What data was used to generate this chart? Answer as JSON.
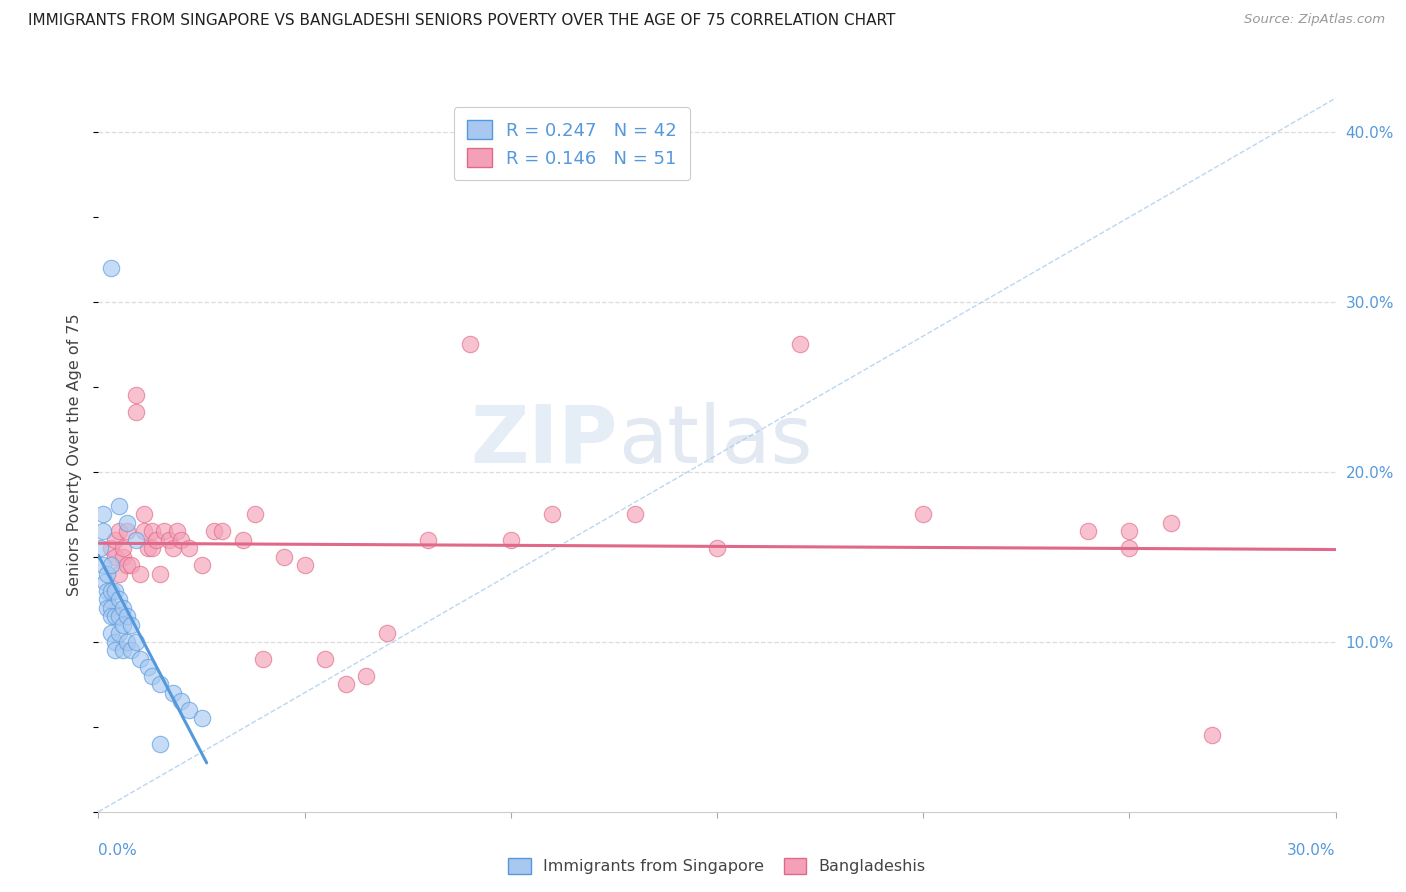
{
  "title": "IMMIGRANTS FROM SINGAPORE VS BANGLADESHI SENIORS POVERTY OVER THE AGE OF 75 CORRELATION CHART",
  "source": "Source: ZipAtlas.com",
  "ylabel": "Seniors Poverty Over the Age of 75",
  "xmin": 0.0,
  "xmax": 0.3,
  "ymin": 0.0,
  "ymax": 0.42,
  "color_blue": "#a8c8f0",
  "color_pink": "#f4a0b8",
  "line_blue": "#5599dd",
  "line_pink": "#e06888",
  "watermark_zip": "ZIP",
  "watermark_atlas": "atlas",
  "legend_r1": "0.247",
  "legend_n1": "42",
  "legend_r2": "0.146",
  "legend_n2": "51",
  "sg_x": [
    0.0005,
    0.001,
    0.001,
    0.001,
    0.0015,
    0.002,
    0.002,
    0.002,
    0.002,
    0.003,
    0.003,
    0.003,
    0.003,
    0.003,
    0.004,
    0.004,
    0.004,
    0.004,
    0.005,
    0.005,
    0.005,
    0.006,
    0.006,
    0.006,
    0.007,
    0.007,
    0.008,
    0.008,
    0.009,
    0.01,
    0.012,
    0.013,
    0.015,
    0.018,
    0.02,
    0.022,
    0.025,
    0.003,
    0.005,
    0.007,
    0.009,
    0.015
  ],
  "sg_y": [
    0.155,
    0.175,
    0.165,
    0.145,
    0.135,
    0.14,
    0.13,
    0.125,
    0.12,
    0.145,
    0.13,
    0.12,
    0.115,
    0.105,
    0.13,
    0.115,
    0.1,
    0.095,
    0.125,
    0.115,
    0.105,
    0.12,
    0.11,
    0.095,
    0.115,
    0.1,
    0.11,
    0.095,
    0.1,
    0.09,
    0.085,
    0.08,
    0.075,
    0.07,
    0.065,
    0.06,
    0.055,
    0.32,
    0.18,
    0.17,
    0.16,
    0.04
  ],
  "bd_x": [
    0.003,
    0.004,
    0.004,
    0.005,
    0.005,
    0.006,
    0.006,
    0.007,
    0.007,
    0.008,
    0.009,
    0.009,
    0.01,
    0.011,
    0.011,
    0.012,
    0.013,
    0.013,
    0.014,
    0.015,
    0.016,
    0.017,
    0.018,
    0.019,
    0.02,
    0.022,
    0.025,
    0.028,
    0.03,
    0.035,
    0.038,
    0.04,
    0.045,
    0.05,
    0.055,
    0.06,
    0.065,
    0.07,
    0.08,
    0.09,
    0.1,
    0.11,
    0.13,
    0.15,
    0.17,
    0.2,
    0.24,
    0.25,
    0.26,
    0.27,
    0.25
  ],
  "bd_y": [
    0.155,
    0.15,
    0.16,
    0.165,
    0.14,
    0.15,
    0.155,
    0.165,
    0.145,
    0.145,
    0.235,
    0.245,
    0.14,
    0.165,
    0.175,
    0.155,
    0.165,
    0.155,
    0.16,
    0.14,
    0.165,
    0.16,
    0.155,
    0.165,
    0.16,
    0.155,
    0.145,
    0.165,
    0.165,
    0.16,
    0.175,
    0.09,
    0.15,
    0.145,
    0.09,
    0.075,
    0.08,
    0.105,
    0.16,
    0.275,
    0.16,
    0.175,
    0.175,
    0.155,
    0.275,
    0.175,
    0.165,
    0.155,
    0.17,
    0.045,
    0.165
  ]
}
